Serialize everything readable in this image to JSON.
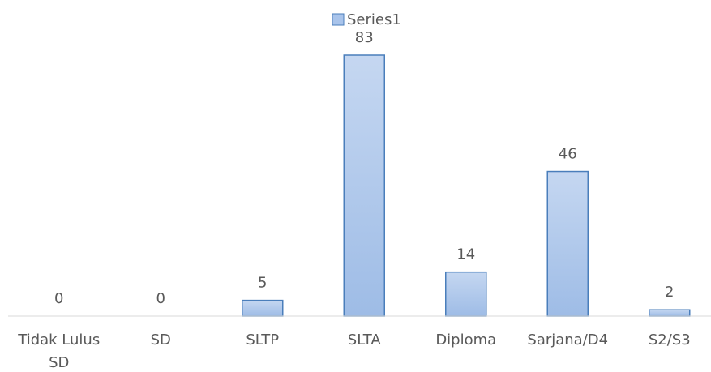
{
  "chart_data": {
    "type": "bar",
    "categories": [
      "Tidak Lulus SD",
      "SD",
      "SLTP",
      "SLTA",
      "Diploma",
      "Sarjana/D4",
      "S2/S3"
    ],
    "series": [
      {
        "name": "Series1",
        "color": "#a9c4eb",
        "values": [
          0,
          0,
          5,
          83,
          14,
          46,
          2
        ]
      }
    ],
    "legend": "top"
  }
}
